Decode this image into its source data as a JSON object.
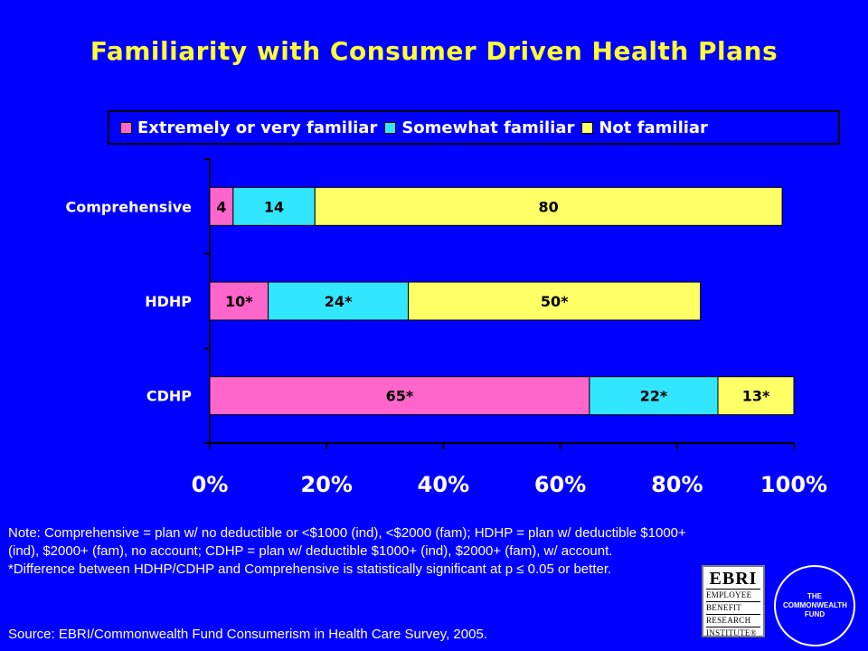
{
  "title": "Familiarity with Consumer Driven Health Plans",
  "chart_data": {
    "type": "bar",
    "orientation": "horizontal",
    "stacked": true,
    "categories": [
      "Comprehensive",
      "HDHP",
      "CDHP"
    ],
    "series": [
      {
        "name": "Extremely or very familiar",
        "color": "#FF66CC",
        "values": [
          4,
          10,
          65
        ],
        "labels": [
          "4",
          "10*",
          "65*"
        ]
      },
      {
        "name": "Somewhat familiar",
        "color": "#33E6FF",
        "values": [
          14,
          24,
          22
        ],
        "labels": [
          "14",
          "24*",
          "22*"
        ]
      },
      {
        "name": "Not familiar",
        "color": "#FFFF66",
        "values": [
          80,
          50,
          13
        ],
        "labels": [
          "80",
          "50*",
          "13*"
        ]
      }
    ],
    "x_ticks": [
      "0%",
      "20%",
      "40%",
      "60%",
      "80%",
      "100%"
    ],
    "xlim": [
      0,
      100
    ],
    "legend_position": "top",
    "grid": false
  },
  "note": {
    "line1": "Note: Comprehensive = plan w/ no deductible or <$1000 (ind), <$2000 (fam); HDHP = plan w/ deductible $1000+ (ind), $2000+ (fam), no account; CDHP = plan w/ deductible $1000+ (ind), $2000+ (fam), w/ account.",
    "line2": "*Difference between HDHP/CDHP and Comprehensive is statistically significant at p ≤ 0.05 or better."
  },
  "source": "Source: EBRI/Commonwealth Fund Consumerism in Health Care Survey, 2005.",
  "logos": {
    "ebri": {
      "abbr": "EBRI",
      "lines": [
        "Employee",
        "Benefit",
        "Research",
        "Institute®"
      ]
    },
    "cwf": {
      "text": "THE COMMONWEALTH FUND"
    }
  }
}
